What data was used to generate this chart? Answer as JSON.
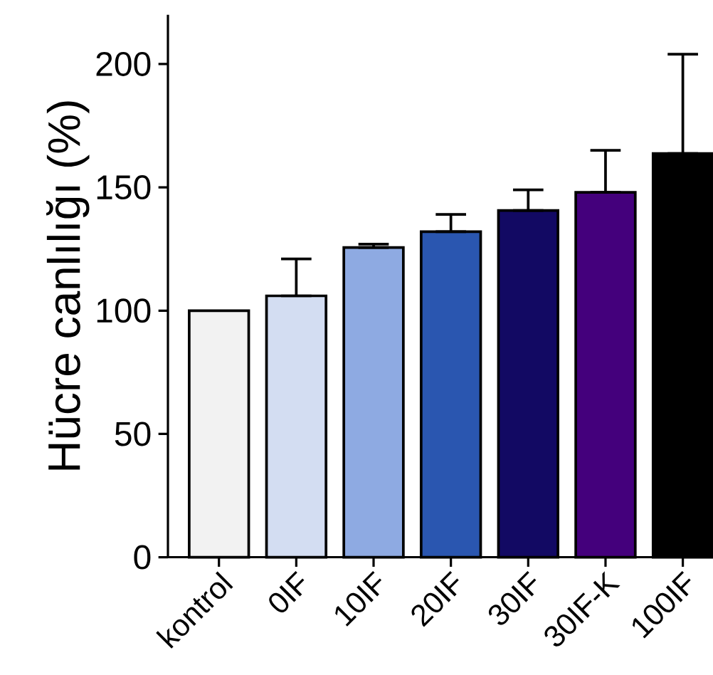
{
  "chart_data": {
    "type": "bar",
    "ylabel": "Hücre canlılığı  (%)",
    "categories": [
      "kontrol",
      "0IF",
      "10IF",
      "20IF",
      "30IF",
      "30IF-K",
      "100IF"
    ],
    "values": [
      100,
      106,
      125.6,
      132,
      140.6,
      148,
      163.7
    ],
    "errors": [
      null,
      [
        106,
        121
      ],
      [
        125.6,
        127
      ],
      [
        132,
        139
      ],
      [
        140.6,
        149
      ],
      [
        148,
        165
      ],
      [
        163.7,
        204
      ]
    ],
    "colors": [
      "#f2f2f2",
      "#d3ddf2",
      "#8eaae2",
      "#2a56b0",
      "#120963",
      "#44007c",
      "#000000"
    ],
    "ylim": [
      0,
      220
    ],
    "yticks": [
      0,
      50,
      100,
      150,
      200
    ]
  }
}
